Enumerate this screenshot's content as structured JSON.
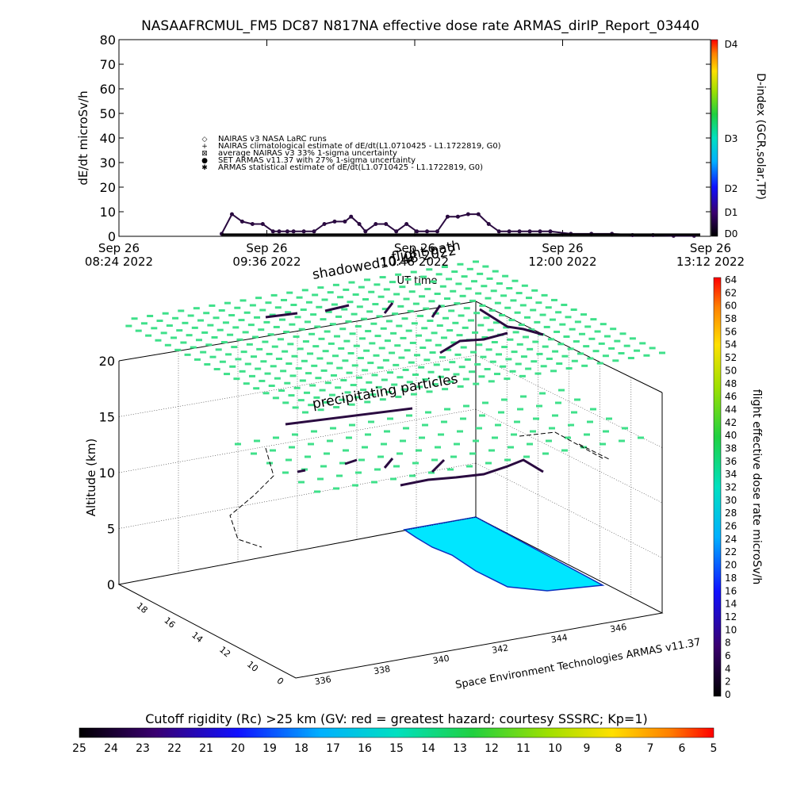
{
  "title": "NASAAFRCMUL_FM5 DC87 N817NA effective dose rate ARMAS_dirIP_Report_03440",
  "chart_data": [
    {
      "type": "line",
      "ylabel": "dE/dt microSv/h",
      "xlabel": "UT time",
      "ylim": [
        0,
        80
      ],
      "yticks": [
        "0",
        "10",
        "20",
        "30",
        "40",
        "50",
        "60",
        "70",
        "80"
      ],
      "xticks": [
        {
          "d": "Sep 26",
          "t": "08:24 2022"
        },
        {
          "d": "Sep 26",
          "t": "09:36 2022"
        },
        {
          "d": "Sep 26",
          "t": "10:48 2022"
        },
        {
          "d": "Sep 26",
          "t": "12:00 2022"
        },
        {
          "d": "Sep 26",
          "t": "13:12 2022"
        }
      ],
      "legend": [
        "NAIRAS v3 NASA LaRC runs",
        "NAIRAS climatological estimate of dE/dt(L1.0710425 - L1.1722819, G0)",
        "average NAIRAS v3 33% 1-sigma uncertainty",
        "SET ARMAS v11.37 with 27% 1-sigma uncertainty",
        "ARMAS statistical estimate of dE/dt(L1.0710425 - L1.1722819, G0)"
      ],
      "legend_placement": "top-left",
      "series": [
        {
          "name": "SET ARMAS v11.37 with 27% 1-sigma uncertainty",
          "x_minutes_from_0824": [
            50,
            55,
            60,
            65,
            70,
            75,
            78,
            82,
            85,
            90,
            95,
            100,
            105,
            110,
            113,
            117,
            120,
            125,
            130,
            135,
            140,
            145,
            150,
            155,
            160,
            165,
            170,
            175,
            180,
            185,
            190,
            195,
            200,
            205,
            210,
            220,
            230,
            240,
            250,
            260,
            270,
            280
          ],
          "values": [
            1,
            9,
            6,
            5,
            5,
            2,
            2,
            2,
            2,
            2,
            2,
            5,
            6,
            6,
            8,
            5,
            2,
            5,
            5,
            2,
            5,
            2,
            2,
            2,
            8,
            8,
            9,
            9,
            5,
            2,
            2,
            2,
            2,
            2,
            2,
            1,
            1,
            1,
            0.5,
            0.5,
            0.2,
            0.2
          ]
        }
      ],
      "right_axis": {
        "label": "D-index (GCR,solar,TP)",
        "ticks": [
          "D0",
          "D1",
          "D2",
          "D3",
          "D4"
        ]
      }
    },
    {
      "type": "scatter",
      "title_labels": [
        "shadowed",
        "10:48 2022",
        "flight path",
        "precipitating particles"
      ],
      "zlabel": "Altitude (km)",
      "zticks": [
        "0",
        "5",
        "10",
        "15",
        "20"
      ],
      "xticks": [
        "336",
        "338",
        "340",
        "342",
        "344",
        "346"
      ],
      "yticks": [
        "0",
        "10",
        "12",
        "14",
        "16",
        "18"
      ],
      "colorbar": {
        "label": "flight effective dose rate microSv/h",
        "ticks": [
          "0",
          "2",
          "4",
          "6",
          "8",
          "10",
          "12",
          "14",
          "16",
          "18",
          "20",
          "22",
          "24",
          "26",
          "28",
          "30",
          "32",
          "34",
          "36",
          "38",
          "40",
          "42",
          "44",
          "46",
          "48",
          "50",
          "52",
          "54",
          "56",
          "58",
          "60",
          "62",
          "64"
        ]
      },
      "credit": "Space Environment Technologies ARMAS v11.37"
    },
    {
      "type": "heatmap",
      "title": "Cutoff rigidity (Rc) >25 km (GV: red = greatest hazard; courtesy SSSRC; Kp=1)",
      "ticks": [
        "25",
        "24",
        "23",
        "22",
        "21",
        "20",
        "19",
        "18",
        "17",
        "16",
        "15",
        "14",
        "13",
        "12",
        "11",
        "10",
        "9",
        "8",
        "7",
        "6",
        "5"
      ]
    }
  ],
  "colors": {
    "points": "#3fe08a",
    "ocean": "#00e6ff",
    "trace": "#2a0a40",
    "armas": "#1030ff"
  }
}
